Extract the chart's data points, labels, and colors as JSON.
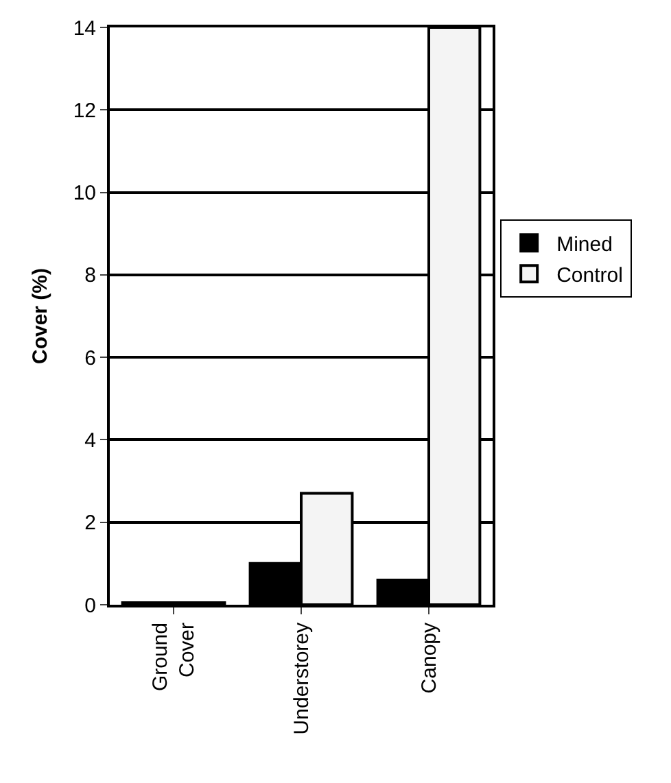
{
  "chart_data": {
    "type": "bar",
    "ylabel": "Cover (%)",
    "categories": [
      "Ground Cover",
      "Understorey",
      "Canopy"
    ],
    "series": [
      {
        "name": "Mined",
        "color": "#000000",
        "values": [
          0.05,
          1.0,
          0.6
        ]
      },
      {
        "name": "Control",
        "color": "#f4f4f4",
        "values": [
          0.05,
          2.7,
          14
        ]
      }
    ],
    "ylim": [
      0,
      14
    ],
    "yticks": [
      0,
      2,
      4,
      6,
      8,
      10,
      12,
      14
    ],
    "grid": "y",
    "legend": "right"
  }
}
